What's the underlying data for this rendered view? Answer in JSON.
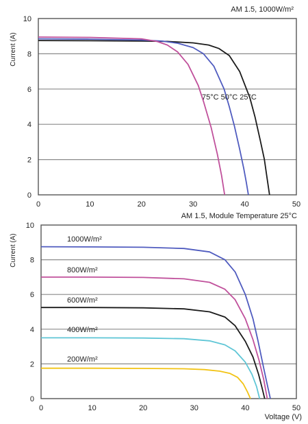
{
  "chart_data": [
    {
      "type": "line",
      "title": "AM 1.5, 1000W/m²",
      "xlabel": "",
      "ylabel": "Current (A)",
      "xlim": [
        0,
        50
      ],
      "ylim": [
        0,
        10
      ],
      "xticks": [
        "0",
        "10",
        "20",
        "30",
        "40",
        "50"
      ],
      "yticks": [
        "0",
        "2",
        "4",
        "6",
        "8",
        "10"
      ],
      "grid": "horizontal",
      "annotation": "75°C  50°C  25°C",
      "series": [
        {
          "name": "25°C",
          "color": "#1a1a1a",
          "points": [
            [
              0,
              8.75
            ],
            [
              10,
              8.74
            ],
            [
              20,
              8.72
            ],
            [
              25,
              8.7
            ],
            [
              30,
              8.62
            ],
            [
              33,
              8.5
            ],
            [
              35,
              8.3
            ],
            [
              37,
              7.9
            ],
            [
              39,
              7.0
            ],
            [
              41,
              5.5
            ],
            [
              42,
              4.4
            ],
            [
              43,
              3.1
            ],
            [
              43.8,
              2.0
            ],
            [
              44.3,
              1.0
            ],
            [
              44.8,
              0
            ]
          ]
        },
        {
          "name": "50°C",
          "color": "#4f5bbf",
          "points": [
            [
              0,
              8.85
            ],
            [
              10,
              8.83
            ],
            [
              20,
              8.78
            ],
            [
              24,
              8.72
            ],
            [
              27,
              8.6
            ],
            [
              30,
              8.35
            ],
            [
              32,
              8.0
            ],
            [
              34,
              7.3
            ],
            [
              36,
              6.0
            ],
            [
              37,
              5.0
            ],
            [
              38,
              3.9
            ],
            [
              39,
              2.6
            ],
            [
              39.8,
              1.5
            ],
            [
              40.3,
              0.7
            ],
            [
              40.7,
              0
            ]
          ]
        },
        {
          "name": "75°C",
          "color": "#c0509b",
          "points": [
            [
              0,
              8.95
            ],
            [
              10,
              8.93
            ],
            [
              20,
              8.85
            ],
            [
              23,
              8.7
            ],
            [
              25,
              8.5
            ],
            [
              27,
              8.1
            ],
            [
              29,
              7.4
            ],
            [
              31,
              6.2
            ],
            [
              32,
              5.3
            ],
            [
              33.5,
              3.8
            ],
            [
              34.7,
              2.3
            ],
            [
              35.5,
              1.1
            ],
            [
              36.1,
              0
            ]
          ]
        }
      ]
    },
    {
      "type": "line",
      "title": "AM 1.5, Module Temperature 25°C",
      "xlabel": "Voltage (V)",
      "ylabel": "Current (A)",
      "xlim": [
        0,
        50
      ],
      "ylim": [
        0,
        10
      ],
      "xticks": [
        "0",
        "10",
        "20",
        "30",
        "40",
        "50"
      ],
      "yticks": [
        "0",
        "2",
        "4",
        "6",
        "8",
        "10"
      ],
      "grid": "horizontal",
      "series": [
        {
          "name": "1000W/m²",
          "color": "#4f5bbf",
          "points": [
            [
              0,
              8.75
            ],
            [
              10,
              8.74
            ],
            [
              20,
              8.72
            ],
            [
              28,
              8.65
            ],
            [
              33,
              8.45
            ],
            [
              36,
              8.0
            ],
            [
              38,
              7.3
            ],
            [
              40,
              6.0
            ],
            [
              41.5,
              4.6
            ],
            [
              42.5,
              3.3
            ],
            [
              43.5,
              1.9
            ],
            [
              44.3,
              0.8
            ],
            [
              44.9,
              0
            ]
          ]
        },
        {
          "name": "800W/m²",
          "color": "#c0509b",
          "points": [
            [
              0,
              7.0
            ],
            [
              10,
              7.0
            ],
            [
              20,
              6.98
            ],
            [
              28,
              6.9
            ],
            [
              33,
              6.7
            ],
            [
              36,
              6.3
            ],
            [
              38,
              5.7
            ],
            [
              40,
              4.6
            ],
            [
              41.5,
              3.4
            ],
            [
              42.7,
              2.2
            ],
            [
              43.6,
              1.1
            ],
            [
              44.3,
              0
            ]
          ]
        },
        {
          "name": "600W/m²",
          "color": "#1a1a1a",
          "points": [
            [
              0,
              5.25
            ],
            [
              10,
              5.25
            ],
            [
              20,
              5.23
            ],
            [
              28,
              5.17
            ],
            [
              33,
              5.0
            ],
            [
              36,
              4.7
            ],
            [
              38,
              4.2
            ],
            [
              40,
              3.3
            ],
            [
              41.5,
              2.4
            ],
            [
              42.6,
              1.4
            ],
            [
              43.3,
              0.6
            ],
            [
              43.8,
              0
            ]
          ]
        },
        {
          "name": "400W/m²",
          "color": "#5fc6d6",
          "points": [
            [
              0,
              3.5
            ],
            [
              10,
              3.5
            ],
            [
              20,
              3.49
            ],
            [
              28,
              3.45
            ],
            [
              33,
              3.33
            ],
            [
              36,
              3.1
            ],
            [
              38,
              2.75
            ],
            [
              40,
              2.1
            ],
            [
              41.3,
              1.4
            ],
            [
              42.2,
              0.7
            ],
            [
              42.8,
              0
            ]
          ]
        },
        {
          "name": "200W/m²",
          "color": "#f2c314",
          "points": [
            [
              0,
              1.75
            ],
            [
              10,
              1.75
            ],
            [
              20,
              1.74
            ],
            [
              28,
              1.72
            ],
            [
              32,
              1.67
            ],
            [
              35,
              1.58
            ],
            [
              37,
              1.45
            ],
            [
              38.5,
              1.22
            ],
            [
              39.6,
              0.85
            ],
            [
              40.4,
              0.4
            ],
            [
              41.0,
              0
            ]
          ]
        }
      ]
    }
  ]
}
